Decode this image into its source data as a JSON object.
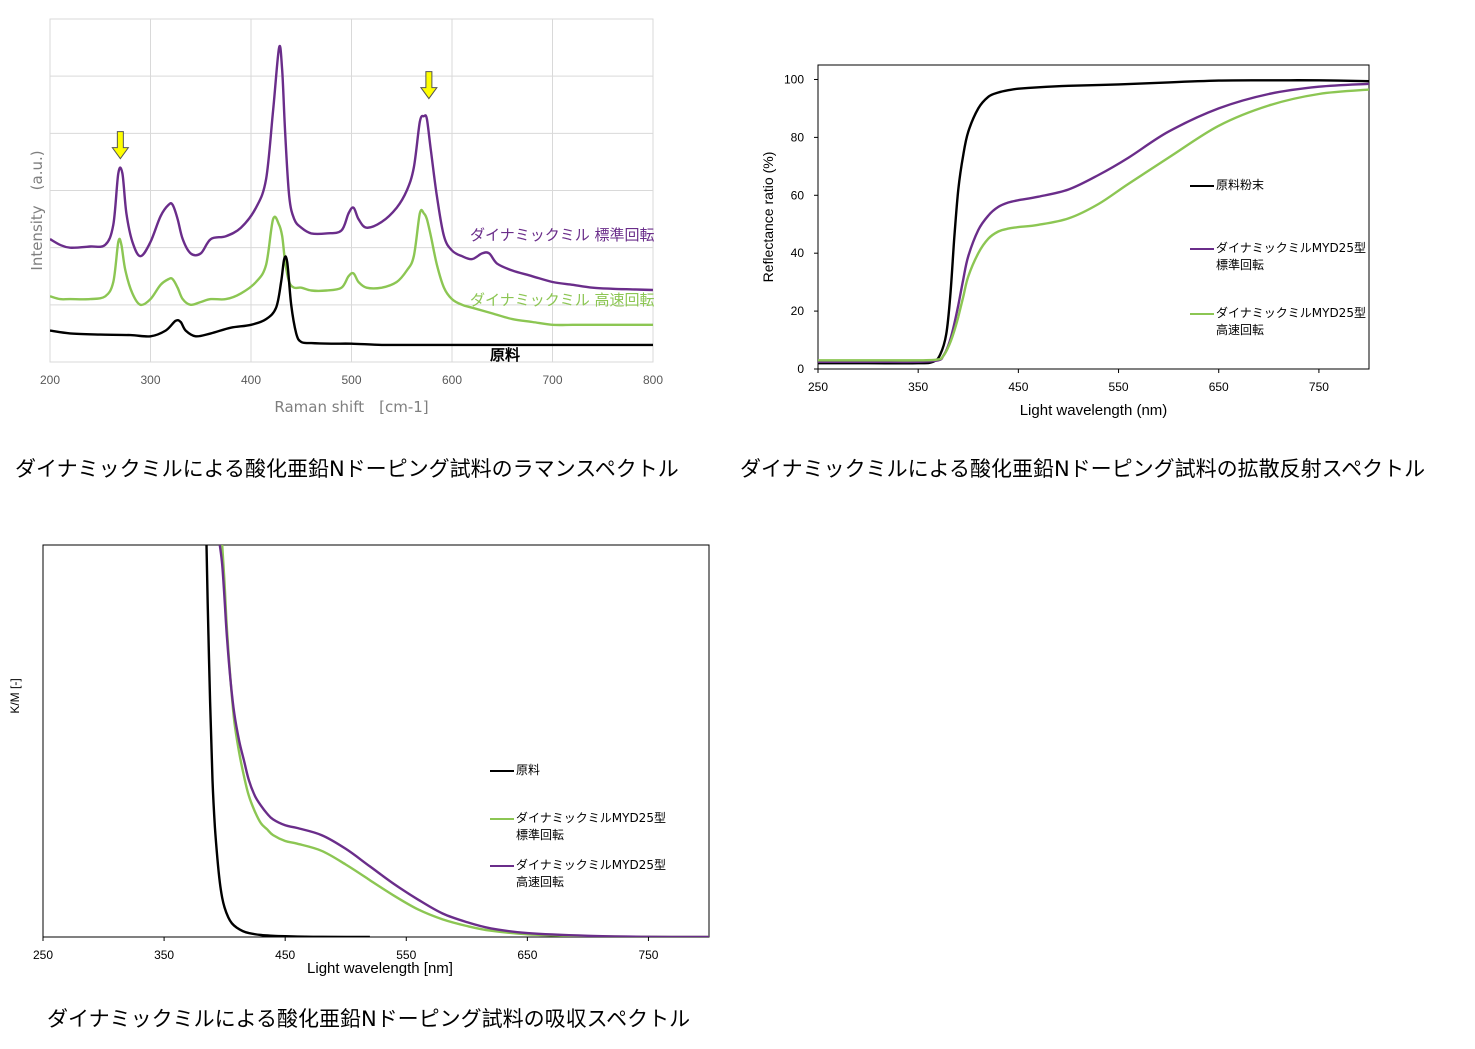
{
  "captions": {
    "raman": "ダイナミックミルによる酸化亜鉛Nドーピング試料のラマンスペクトル",
    "reflect": "ダイナミックミルによる酸化亜鉛Nドーピング試料の拡散反射スペクトル",
    "absorb": "ダイナミックミルによる酸化亜鉛Nドーピング試料の吸収スペクトル"
  },
  "colors": {
    "purple": "#6a2d8a",
    "green": "#8cc653",
    "black": "#000000",
    "arrow": "#ffff00",
    "grid": "#d9d9d9"
  },
  "chart_data": [
    {
      "id": "raman",
      "type": "line",
      "xlabel": "Raman shift　[cm-1]",
      "ylabel": "Intensity　(a.u.)",
      "xlim": [
        200,
        800
      ],
      "ylim": [
        0,
        6
      ],
      "xticks": [
        "200",
        "300",
        "400",
        "500",
        "600",
        "700",
        "800"
      ],
      "grid": true,
      "annotations": [
        {
          "text": "↓",
          "x": 270,
          "y": 3.75
        },
        {
          "text": "↓",
          "x": 577,
          "y": 4.8
        }
      ],
      "series": [
        {
          "name": "ダイナミックミル 標準回転",
          "color": "#6a2d8a",
          "x": [
            200,
            210,
            220,
            240,
            255,
            263,
            268,
            272,
            276,
            282,
            290,
            300,
            310,
            318,
            322,
            327,
            332,
            340,
            350,
            360,
            375,
            390,
            405,
            415,
            422,
            428,
            431,
            434,
            438,
            443,
            450,
            460,
            475,
            490,
            497,
            502,
            507,
            515,
            530,
            545,
            555,
            562,
            568,
            572,
            575,
            579,
            585,
            592,
            600,
            610,
            620,
            630,
            637,
            645,
            660,
            680,
            700,
            720,
            740,
            760,
            780,
            800
          ],
          "y": [
            2.15,
            2.05,
            2.0,
            2.02,
            2.05,
            2.4,
            3.3,
            3.3,
            2.6,
            2.1,
            1.85,
            2.1,
            2.55,
            2.75,
            2.75,
            2.5,
            2.15,
            1.9,
            1.9,
            2.15,
            2.2,
            2.35,
            2.7,
            3.2,
            4.4,
            5.5,
            5.1,
            4.0,
            2.9,
            2.5,
            2.35,
            2.25,
            2.25,
            2.3,
            2.6,
            2.7,
            2.5,
            2.35,
            2.45,
            2.7,
            3.0,
            3.4,
            4.2,
            4.3,
            4.25,
            3.7,
            2.9,
            2.2,
            1.95,
            1.85,
            1.8,
            1.9,
            1.9,
            1.72,
            1.6,
            1.5,
            1.4,
            1.35,
            1.3,
            1.28,
            1.27,
            1.26
          ]
        },
        {
          "name": "ダイナミックミル 高速回転",
          "color": "#8cc653",
          "x": [
            200,
            210,
            220,
            240,
            255,
            263,
            268,
            271,
            275,
            282,
            290,
            300,
            310,
            318,
            322,
            327,
            332,
            340,
            350,
            360,
            375,
            390,
            405,
            415,
            422,
            428,
            431,
            434,
            438,
            443,
            450,
            460,
            475,
            490,
            497,
            502,
            507,
            515,
            530,
            545,
            555,
            562,
            568,
            572,
            575,
            579,
            585,
            592,
            600,
            610,
            620,
            640,
            660,
            680,
            700,
            720,
            740,
            760,
            780,
            800
          ],
          "y": [
            1.15,
            1.1,
            1.1,
            1.1,
            1.15,
            1.4,
            2.1,
            2.05,
            1.6,
            1.2,
            1.0,
            1.1,
            1.35,
            1.45,
            1.45,
            1.3,
            1.1,
            1.0,
            1.05,
            1.1,
            1.1,
            1.2,
            1.4,
            1.7,
            2.5,
            2.4,
            2.2,
            1.75,
            1.4,
            1.3,
            1.3,
            1.25,
            1.25,
            1.3,
            1.5,
            1.55,
            1.4,
            1.3,
            1.3,
            1.4,
            1.6,
            1.85,
            2.6,
            2.6,
            2.5,
            2.2,
            1.7,
            1.3,
            1.1,
            1.0,
            0.95,
            0.85,
            0.75,
            0.7,
            0.65,
            0.65,
            0.65,
            0.65,
            0.65,
            0.65
          ]
        },
        {
          "name": "原料",
          "color": "#000000",
          "x": [
            200,
            220,
            250,
            280,
            300,
            315,
            325,
            330,
            335,
            345,
            360,
            380,
            400,
            415,
            425,
            430,
            433,
            436,
            440,
            445,
            450,
            460,
            480,
            500,
            530,
            560,
            600,
            650,
            700,
            750,
            800
          ],
          "y": [
            0.55,
            0.5,
            0.48,
            0.47,
            0.45,
            0.55,
            0.72,
            0.7,
            0.55,
            0.45,
            0.5,
            0.6,
            0.65,
            0.75,
            0.95,
            1.4,
            1.8,
            1.75,
            1.0,
            0.5,
            0.35,
            0.33,
            0.32,
            0.32,
            0.3,
            0.3,
            0.3,
            0.3,
            0.3,
            0.3,
            0.3
          ]
        }
      ],
      "labels": [
        {
          "text": "ダイナミックミル 標準回転",
          "color": "#6a2d8a"
        },
        {
          "text": "ダイナミックミル 高速回転",
          "color": "#8cc653"
        },
        {
          "text": "原料",
          "color": "#000000"
        }
      ]
    },
    {
      "id": "reflect",
      "type": "line",
      "xlabel": "Light wavelength (nm)",
      "ylabel": "Reflectance ratio (%)",
      "xlim": [
        250,
        800
      ],
      "ylim": [
        0,
        105
      ],
      "xticks": [
        "250",
        "350",
        "450",
        "550",
        "650",
        "750"
      ],
      "xtickvals": [
        250,
        350,
        450,
        550,
        650,
        750
      ],
      "yticks": [
        "0",
        "20",
        "40",
        "60",
        "80",
        "100"
      ],
      "ytickvals": [
        0,
        20,
        40,
        60,
        80,
        100
      ],
      "grid": false,
      "series": [
        {
          "name": "原料粉末",
          "color": "#000000",
          "x": [
            250,
            300,
            350,
            365,
            372,
            378,
            382,
            386,
            390,
            395,
            400,
            410,
            420,
            430,
            440,
            450,
            470,
            500,
            550,
            600,
            650,
            700,
            750,
            800
          ],
          "y": [
            2,
            2,
            2,
            2.5,
            5,
            12,
            25,
            45,
            62,
            74,
            82,
            90,
            94,
            95.5,
            96.3,
            96.8,
            97.3,
            97.8,
            98.3,
            99,
            99.6,
            99.7,
            99.7,
            99.4
          ]
        },
        {
          "name": "ダイナミックミルMYD25型 標準回転",
          "color": "#6a2d8a",
          "x": [
            250,
            300,
            350,
            370,
            375,
            380,
            385,
            390,
            395,
            400,
            410,
            420,
            430,
            440,
            450,
            470,
            500,
            530,
            560,
            600,
            650,
            700,
            750,
            800
          ],
          "y": [
            2.5,
            2.5,
            2.5,
            3,
            4.5,
            8,
            14,
            22,
            31,
            39,
            48,
            53,
            56,
            57.5,
            58.3,
            59.5,
            62,
            67,
            73,
            82,
            90,
            95,
            97.5,
            98.5
          ]
        },
        {
          "name": "ダイナミックミルMYD25型 高速回転",
          "color": "#8cc653",
          "x": [
            250,
            300,
            350,
            370,
            375,
            380,
            385,
            390,
            395,
            400,
            410,
            420,
            430,
            440,
            450,
            470,
            500,
            530,
            560,
            600,
            650,
            700,
            750,
            800
          ],
          "y": [
            3,
            3,
            3,
            3.3,
            4.5,
            7.5,
            12,
            18,
            25,
            32,
            40,
            45,
            47.5,
            48.5,
            49,
            49.8,
            52,
            57,
            64,
            73,
            84,
            91,
            95,
            96.5
          ]
        }
      ],
      "legend": [
        {
          "line1": "原料粉末",
          "line2": "",
          "color": "#000000"
        },
        {
          "line1": "ダイナミックミルMYD25型",
          "line2": "標準回転",
          "color": "#6a2d8a"
        },
        {
          "line1": "ダイナミックミルMYD25型",
          "line2": "高速回転",
          "color": "#8cc653"
        }
      ]
    },
    {
      "id": "absorb",
      "type": "line",
      "xlabel": "Light wavelength [nm]",
      "ylabel": "K/M [-]",
      "xlim": [
        250,
        800
      ],
      "ylim": [
        0,
        100
      ],
      "xticks": [
        "250",
        "350",
        "450",
        "550",
        "650",
        "750"
      ],
      "xtickvals": [
        250,
        350,
        450,
        550,
        650,
        750
      ],
      "grid": false,
      "series": [
        {
          "name": "原料",
          "color": "#000000",
          "x": [
            385,
            386,
            388,
            390,
            392,
            394,
            396,
            398,
            400,
            403,
            406,
            410,
            415,
            420,
            430,
            440,
            450,
            460,
            480,
            500,
            520
          ],
          "y": [
            100,
            85,
            60,
            40,
            28,
            20,
            14,
            10,
            7.5,
            5,
            3.5,
            2.4,
            1.5,
            1,
            0.5,
            0.3,
            0.2,
            0.1,
            0.05,
            0.02,
            0
          ]
        },
        {
          "name": "ダイナミックミルMYD25型 標準回転",
          "color": "#8cc653",
          "x": [
            398,
            400,
            402,
            405,
            408,
            412,
            416,
            420,
            425,
            430,
            435,
            440,
            450,
            460,
            480,
            500,
            520,
            540,
            560,
            580,
            600,
            620,
            650,
            700,
            750,
            800
          ],
          "y": [
            100,
            90,
            78,
            65,
            55,
            47,
            41,
            36,
            32,
            29,
            27.5,
            26,
            24.5,
            23.8,
            22,
            18.5,
            14.5,
            10.5,
            7,
            4.5,
            2.8,
            1.6,
            0.7,
            0.2,
            0.05,
            0
          ]
        },
        {
          "name": "ダイナミックミルMYD25型 高速回転",
          "color": "#6a2d8a",
          "x": [
            396,
            398,
            400,
            402,
            405,
            408,
            412,
            416,
            420,
            425,
            430,
            435,
            440,
            450,
            460,
            480,
            500,
            520,
            540,
            560,
            580,
            600,
            620,
            650,
            700,
            750,
            800
          ],
          "y": [
            100,
            95,
            86,
            76,
            65,
            57,
            50,
            45,
            40,
            36,
            33.5,
            31.5,
            30,
            28.5,
            27.8,
            26,
            22.5,
            18,
            13.5,
            9.5,
            6,
            3.8,
            2.2,
            1,
            0.3,
            0.05,
            0
          ]
        }
      ],
      "legend": [
        {
          "line1": "原料",
          "line2": "",
          "color": "#000000"
        },
        {
          "line1": "ダイナミックミルMYD25型",
          "line2": "標準回転",
          "color": "#8cc653"
        },
        {
          "line1": "ダイナミックミルMYD25型",
          "line2": "高速回転",
          "color": "#6a2d8a"
        }
      ]
    }
  ]
}
